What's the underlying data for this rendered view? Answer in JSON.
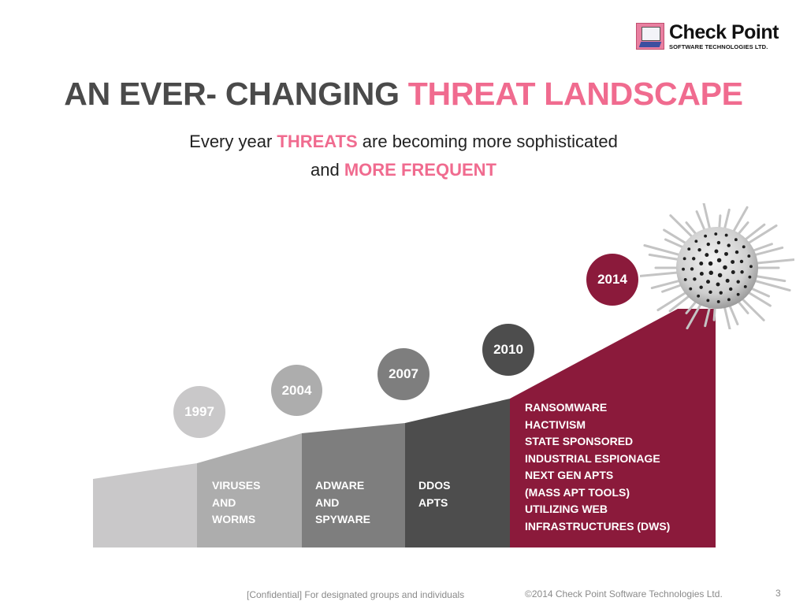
{
  "logo": {
    "name": "Check Point",
    "subtitle": "SOFTWARE TECHNOLOGIES LTD.",
    "icon": "computer-icon"
  },
  "title": {
    "part1": "AN EVER- CHANGING ",
    "part2": "THREAT LANDSCAPE"
  },
  "subtitle": {
    "line1_pre": "Every year ",
    "line1_accent": "THREATS",
    "line1_post": " are becoming more sophisticated",
    "line2_pre": "and ",
    "line2_accent": "MORE FREQUENT"
  },
  "colors": {
    "accent_pink": "#f06b8f",
    "title_gray": "#4a4a4a",
    "crimson": "#8b1a3b"
  },
  "timeline": [
    {
      "year": "1997",
      "color": "#c9c8c9",
      "lines": []
    },
    {
      "year": "2004",
      "color": "#adadad",
      "lines": [
        "VIRUSES",
        "AND",
        "WORMS"
      ]
    },
    {
      "year": "2007",
      "color": "#7e7e7e",
      "lines": [
        "ADWARE",
        "AND",
        "SPYWARE"
      ]
    },
    {
      "year": "2010",
      "color": "#4d4d4d",
      "lines": [
        "DDOS",
        "APTS"
      ]
    },
    {
      "year": "2014",
      "color": "#8b1a3b",
      "lines": [
        "RANSOMWARE",
        "HACTIVISM",
        "STATE SPONSORED",
        "INDUSTRIAL ESPIONAGE",
        "NEXT GEN APTS",
        "(MASS APT TOOLS)",
        "UTILIZING WEB",
        "INFRASTRUCTURES (DWS)"
      ]
    }
  ],
  "illustration": "virus-icon",
  "footer": {
    "confidential": "[Confidential] For designated groups and individuals",
    "copyright": "©2014 Check Point Software Technologies Ltd.",
    "page_number": "3"
  }
}
